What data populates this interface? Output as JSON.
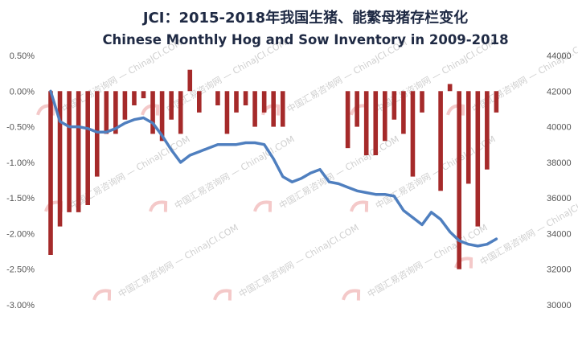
{
  "chart_data": {
    "type": "bar+line",
    "title": "JCI：2015-2018年我国生猪、能繁母猪存栏变化",
    "subtitle": "Chinese Monthly Hog and Sow Inventory in 2009-2018",
    "watermark": "中国汇易咨询网 — ChinaJCI.COM",
    "y_left": {
      "ticks": [
        "0.50%",
        "0.00%",
        "-0.50%",
        "-1.00%",
        "-1.50%",
        "-2.00%",
        "-2.50%",
        "-3.00%"
      ],
      "ylim": [
        -3.0,
        0.5
      ]
    },
    "y_right": {
      "ticks": [
        "44000",
        "42000",
        "40000",
        "38000",
        "36000",
        "34000",
        "32000",
        "30000"
      ],
      "ylim": [
        30000,
        44000
      ]
    },
    "bar_color": "#a52a2a",
    "line_color": "#4f7fbf",
    "series": [
      {
        "axis": "left",
        "type": "bar",
        "values": [
          -2.3,
          -1.9,
          -1.7,
          -1.7,
          -1.6,
          -1.2,
          -0.6,
          -0.6,
          -0.4,
          -0.2,
          -0.1,
          -0.6,
          -0.7,
          -0.4,
          -0.6,
          0.3,
          -0.3,
          0.0,
          -0.2,
          -0.6,
          -0.3,
          -0.2,
          -0.5,
          -0.3,
          -0.5,
          -0.5,
          0.0,
          0.0,
          0.0,
          0.0,
          0.0,
          0.0,
          -0.8,
          -0.5,
          -0.9,
          -0.9,
          -0.7,
          -0.4,
          -0.6,
          -1.2,
          -0.3,
          0.0,
          -1.4,
          0.1,
          -2.5,
          -1.3,
          -1.9,
          -1.1,
          -0.3
        ]
      },
      {
        "axis": "right",
        "type": "line",
        "values": [
          42000,
          40300,
          40000,
          40000,
          39900,
          39700,
          39700,
          39900,
          40200,
          40400,
          40500,
          40200,
          39500,
          38700,
          38000,
          38400,
          38600,
          38800,
          39000,
          39000,
          39000,
          39100,
          39100,
          39000,
          38200,
          37200,
          36900,
          37100,
          37400,
          37600,
          36900,
          36800,
          36600,
          36400,
          36300,
          36200,
          36200,
          36100,
          35300,
          34900,
          34500,
          35200,
          34800,
          34100,
          33600,
          33400,
          33300,
          33400,
          33700
        ]
      }
    ]
  }
}
